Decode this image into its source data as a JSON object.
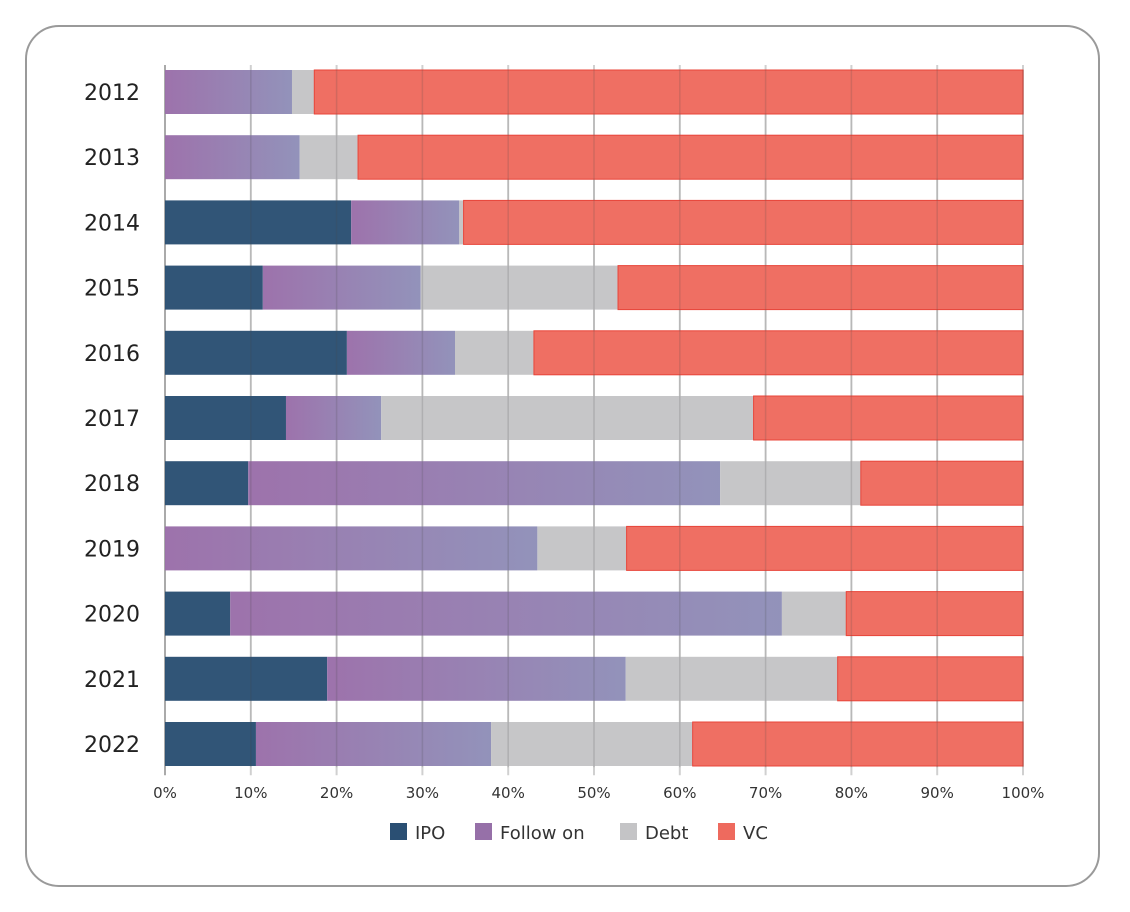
{
  "chart_data": {
    "type": "bar",
    "orientation": "horizontal",
    "stacked": "percent",
    "categories": [
      "2012",
      "2013",
      "2014",
      "2015",
      "2016",
      "2017",
      "2018",
      "2019",
      "2020",
      "2021",
      "2022"
    ],
    "series": [
      {
        "name": "IPO",
        "color": "#2a4f73",
        "values": [
          0,
          0,
          21.7,
          11.4,
          21.2,
          14.1,
          9.7,
          0,
          7.6,
          18.9,
          10.6
        ]
      },
      {
        "name": "Follow on",
        "color": "#9670a8",
        "values": [
          14.8,
          15.7,
          12.6,
          18.4,
          12.6,
          11.1,
          55.0,
          43.4,
          64.3,
          34.8,
          27.4
        ]
      },
      {
        "name": "Debt",
        "color": "#c4c4c6",
        "values": [
          2.6,
          6.8,
          0.5,
          23.0,
          9.2,
          43.4,
          16.4,
          10.4,
          7.5,
          24.7,
          23.5
        ]
      },
      {
        "name": "VC",
        "color": "#ee6a5e",
        "values": [
          82.6,
          77.5,
          65.2,
          47.2,
          57.0,
          31.4,
          18.9,
          46.2,
          20.6,
          21.6,
          38.5
        ]
      }
    ],
    "xlim": [
      0,
      100
    ],
    "xticks": [
      "0%",
      "10%",
      "20%",
      "30%",
      "40%",
      "50%",
      "60%",
      "70%",
      "80%",
      "90%",
      "100%"
    ],
    "grid": true,
    "legend": "bottom"
  }
}
